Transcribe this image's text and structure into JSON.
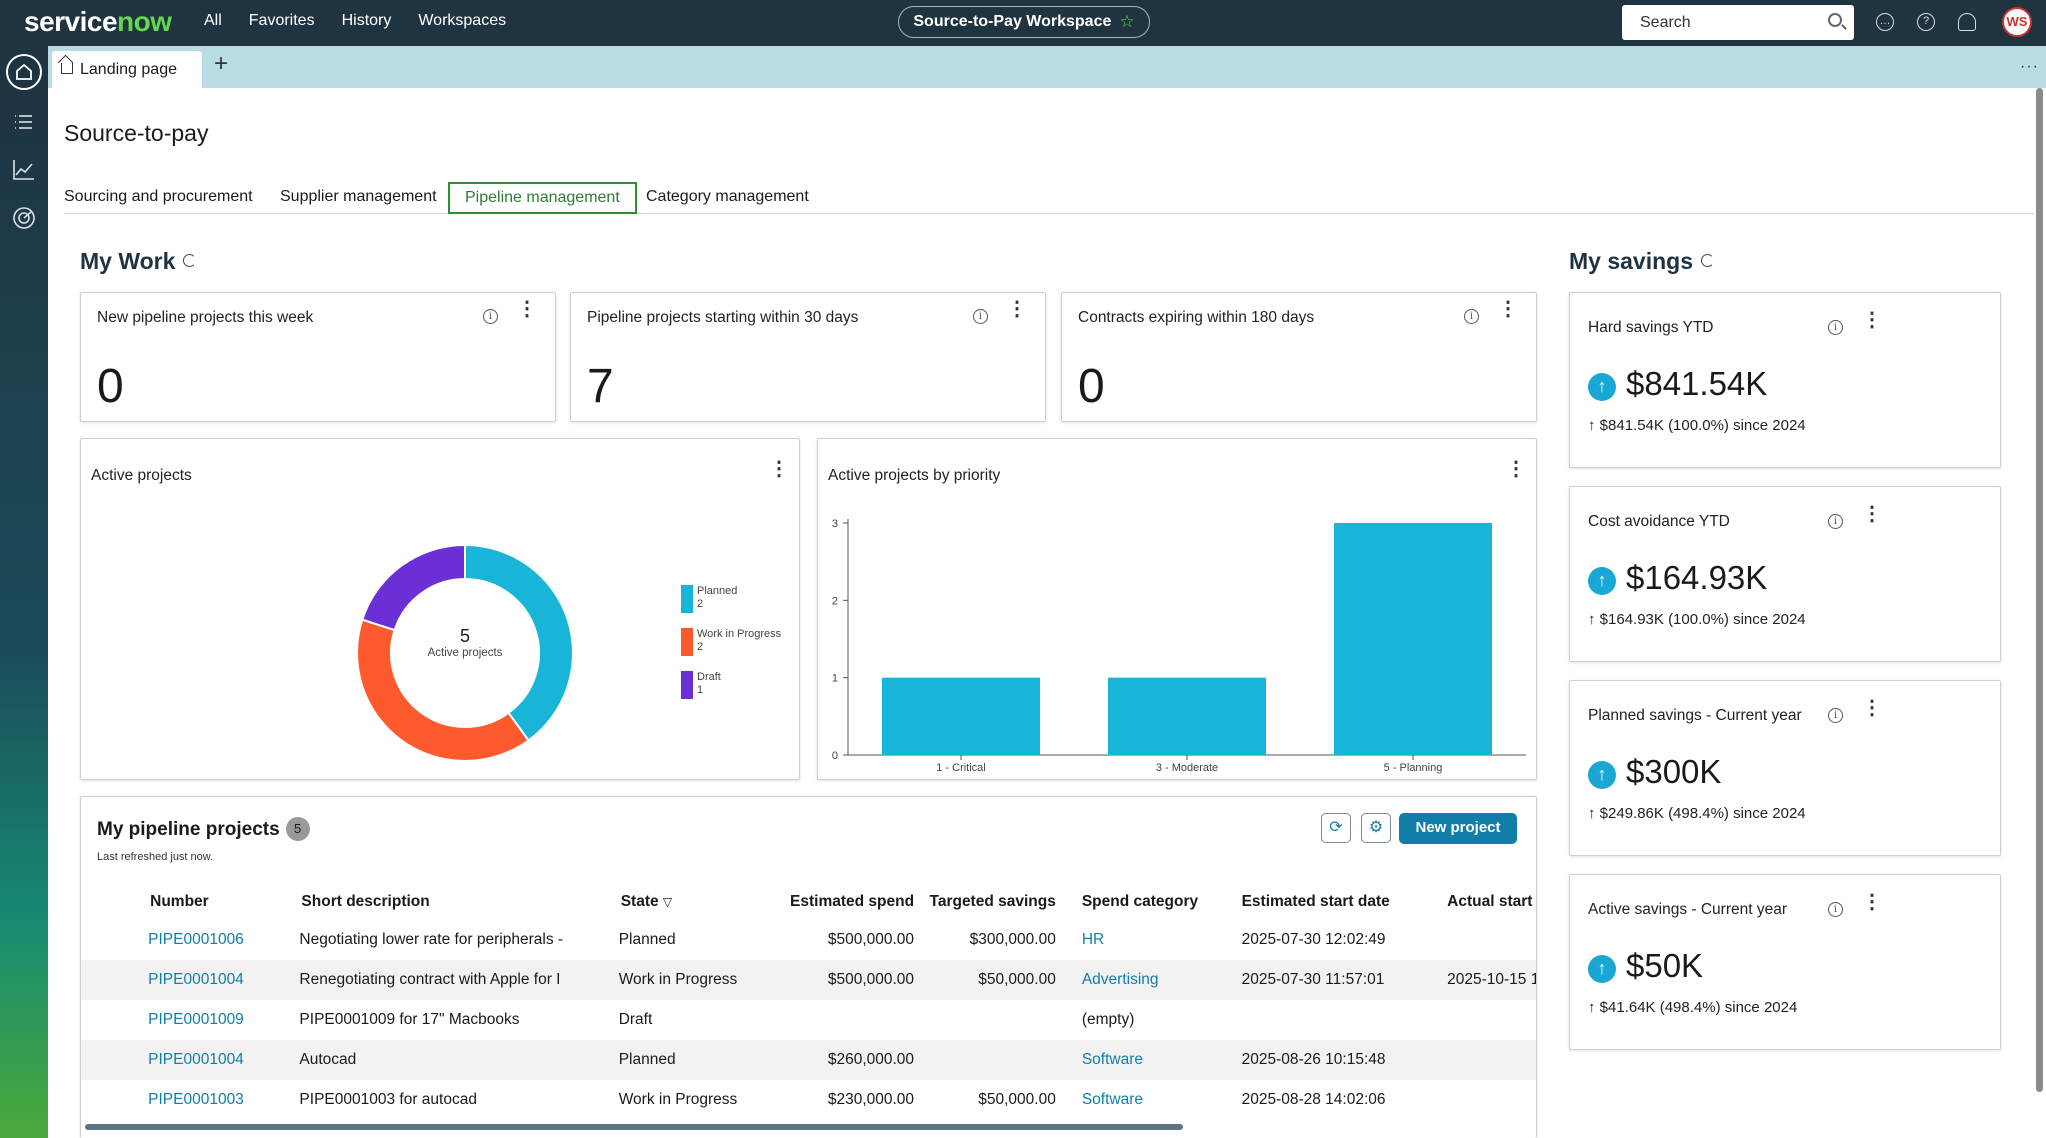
{
  "topbar": {
    "logo_a": "service",
    "logo_b": "now",
    "nav": [
      "All",
      "Favorites",
      "History",
      "Workspaces"
    ],
    "workspace_pill": "Source-to-Pay Workspace",
    "search_label": "Search",
    "avatar_initials": "WS"
  },
  "tabs": {
    "landing": "Landing page"
  },
  "page": {
    "title": "Source-to-pay",
    "subtabs": [
      "Sourcing and procurement",
      "Supplier management",
      "Pipeline management",
      "Category management"
    ],
    "active_subtab": "Pipeline management"
  },
  "my_work": {
    "title": "My Work",
    "cards": [
      {
        "title": "New pipeline projects this week",
        "value": "0"
      },
      {
        "title": "Pipeline projects starting within 30 days",
        "value": "7"
      },
      {
        "title": "Contracts expiring within 180 days",
        "value": "0"
      }
    ]
  },
  "active_projects": {
    "title": "Active projects",
    "center_value": "5",
    "center_label": "Active projects"
  },
  "priority_chart": {
    "title": "Active projects by priority"
  },
  "chart_data": [
    {
      "type": "pie",
      "title": "Active projects",
      "categories": [
        "Planned",
        "Work in Progress",
        "Draft"
      ],
      "values": [
        2,
        2,
        1
      ],
      "value_labels": [
        "2",
        "2",
        "1"
      ],
      "colors": [
        "#19b5d9",
        "#ff5a2e",
        "#6b2fd6"
      ],
      "legend_position": "right"
    },
    {
      "type": "bar",
      "title": "Active projects by priority",
      "categories": [
        "1 - Critical",
        "3 - Moderate",
        "5 - Planning"
      ],
      "values": [
        1,
        1,
        3
      ],
      "ylim": [
        0,
        3
      ],
      "yticks": [
        "0",
        "1",
        "2",
        "3"
      ],
      "color": "#19b5d9",
      "grid": false
    }
  ],
  "pipeline": {
    "title": "My pipeline projects",
    "count": "5",
    "last_refreshed": "Last refreshed just now.",
    "new_button": "New project",
    "columns": [
      "Number",
      "Short description",
      "State",
      "Estimated spend",
      "Targeted savings",
      "Spend category",
      "Estimated start date",
      "Actual start d"
    ],
    "rows": [
      [
        "PIPE0001006",
        "Negotiating lower rate for peripherals -",
        "Planned",
        "$500,000.00",
        "$300,000.00",
        "HR",
        "2025-07-30 12:02:49",
        ""
      ],
      [
        "PIPE0001004",
        "Renegotiating contract with Apple for I",
        "Work in Progress",
        "$500,000.00",
        "$50,000.00",
        "Advertising",
        "2025-07-30 11:57:01",
        "2025-10-15 1"
      ],
      [
        "PIPE0001009",
        "PIPE0001009 for 17\" Macbooks",
        "Draft",
        "",
        "",
        "(empty)",
        "",
        ""
      ],
      [
        "PIPE0001004",
        "Autocad",
        "Planned",
        "$260,000.00",
        "",
        "Software",
        "2025-08-26 10:15:48",
        ""
      ],
      [
        "PIPE0001003",
        "PIPE0001003 for autocad",
        "Work in Progress",
        "$230,000.00",
        "$50,000.00",
        "Software",
        "2025-08-28 14:02:06",
        ""
      ]
    ]
  },
  "my_savings": {
    "title": "My savings",
    "cards": [
      {
        "title": "Hard savings YTD",
        "amount": "$841.54K",
        "since": "$841.54K (100.0%) since 2024"
      },
      {
        "title": "Cost avoidance YTD",
        "amount": "$164.93K",
        "since": "$164.93K (100.0%) since 2024"
      },
      {
        "title": "Planned savings - Current year",
        "amount": "$300K",
        "since": "$249.86K (498.4%) since 2024"
      },
      {
        "title": "Active savings - Current year",
        "amount": "$50K",
        "since": "$41.64K (498.4%) since 2024"
      }
    ]
  }
}
